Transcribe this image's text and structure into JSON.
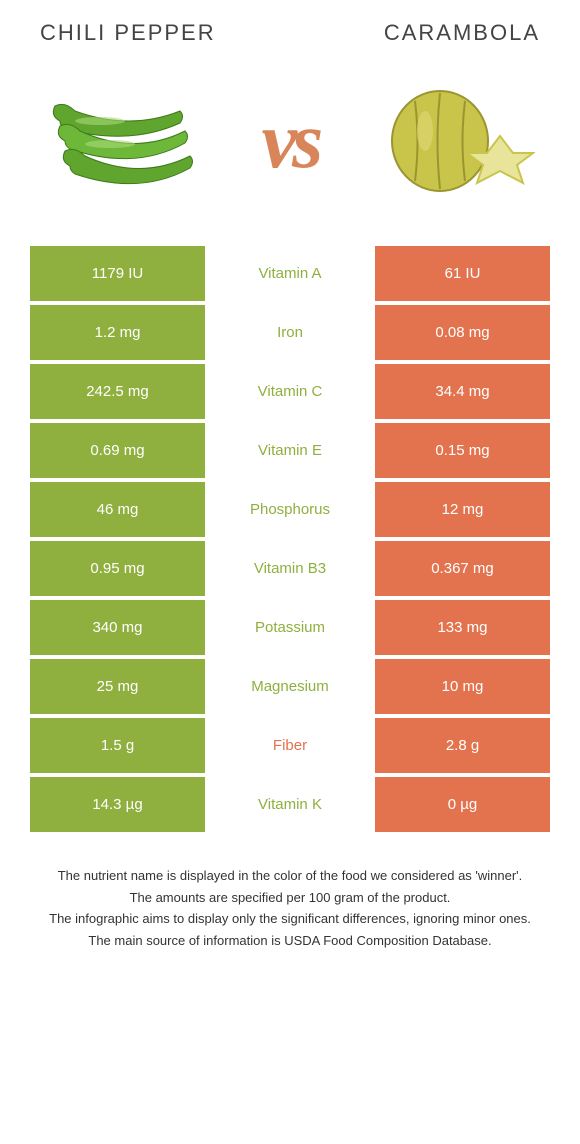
{
  "header": {
    "left": "Chili pepper",
    "right": "Carambola"
  },
  "vs": "vs",
  "colors": {
    "left": "#8fb03e",
    "right": "#e2734e",
    "left_text": "#8fb03e",
    "right_text": "#e2734e"
  },
  "rows": [
    {
      "left": "1179 IU",
      "label": "Vitamin A",
      "right": "61 IU",
      "winner": "left"
    },
    {
      "left": "1.2 mg",
      "label": "Iron",
      "right": "0.08 mg",
      "winner": "left"
    },
    {
      "left": "242.5 mg",
      "label": "Vitamin C",
      "right": "34.4 mg",
      "winner": "left"
    },
    {
      "left": "0.69 mg",
      "label": "Vitamin E",
      "right": "0.15 mg",
      "winner": "left"
    },
    {
      "left": "46 mg",
      "label": "Phosphorus",
      "right": "12 mg",
      "winner": "left"
    },
    {
      "left": "0.95 mg",
      "label": "Vitamin B3",
      "right": "0.367 mg",
      "winner": "left"
    },
    {
      "left": "340 mg",
      "label": "Potassium",
      "right": "133 mg",
      "winner": "left"
    },
    {
      "left": "25 mg",
      "label": "Magnesium",
      "right": "10 mg",
      "winner": "left"
    },
    {
      "left": "1.5 g",
      "label": "Fiber",
      "right": "2.8 g",
      "winner": "right"
    },
    {
      "left": "14.3 µg",
      "label": "Vitamin K",
      "right": "0 µg",
      "winner": "left"
    }
  ],
  "footer": [
    "The nutrient name is displayed in the color of the food we considered as 'winner'.",
    "The amounts are specified per 100 gram of the product.",
    "The infographic aims to display only the significant differences, ignoring minor ones.",
    "The main source of information is USDA Food Composition Database."
  ]
}
